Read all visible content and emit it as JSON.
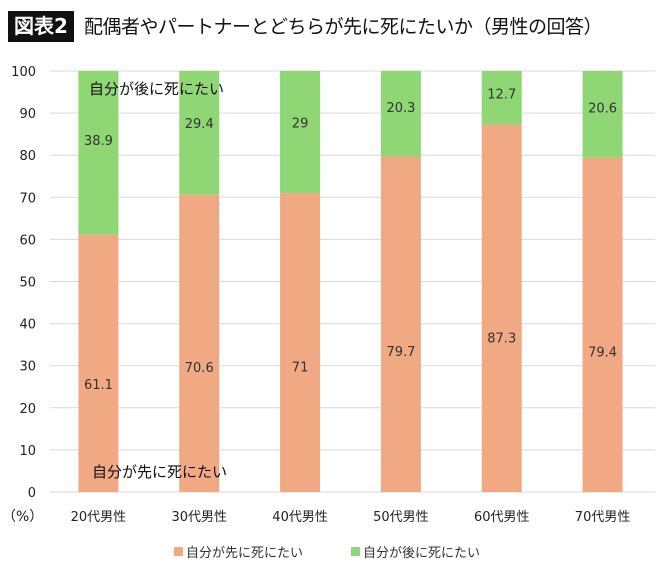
{
  "header": {
    "badge": "図表2",
    "title": "配偶者やパートナーとどちらが先に死にたいか（男性の回答）"
  },
  "chart_data": {
    "type": "bar",
    "stacked": true,
    "categories": [
      "20代男性",
      "30代男性",
      "40代男性",
      "50代男性",
      "60代男性",
      "70代男性"
    ],
    "series": [
      {
        "name": "自分が先に死にたい",
        "values": [
          61.1,
          70.6,
          71,
          79.7,
          87.3,
          79.4
        ],
        "color": "#F0A983"
      },
      {
        "name": "自分が後に死にたい",
        "values": [
          38.9,
          29.4,
          29,
          20.3,
          12.7,
          20.6
        ],
        "color": "#8FD674"
      }
    ],
    "ylabel": "（%）",
    "ylim": [
      0,
      100
    ],
    "yticks": [
      0,
      10,
      20,
      30,
      40,
      50,
      60,
      70,
      80,
      90,
      100
    ],
    "grid": true,
    "legend": "bottom",
    "annotations": {
      "top": "自分が後に死にたい",
      "bottom": "自分が先に死にたい"
    }
  }
}
